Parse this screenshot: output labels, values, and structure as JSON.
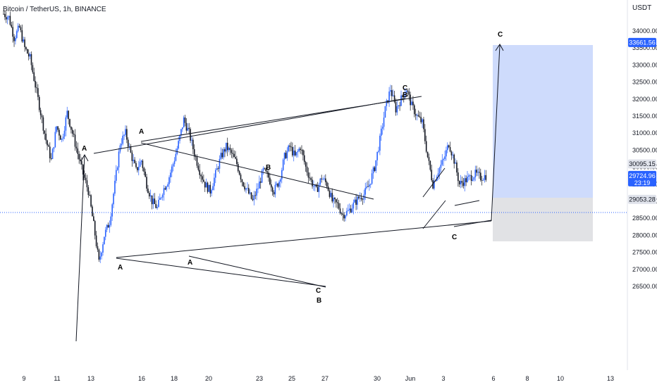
{
  "header": {
    "title": "Bitcoin / TetherUS, 1h, BINANCE"
  },
  "currency_label": "USDT",
  "chart_data": {
    "type": "candlestick",
    "symbol": "Bitcoin / TetherUS",
    "interval": "1h",
    "exchange": "BINANCE",
    "y_ticks": [
      34000,
      33500,
      33000,
      32500,
      32000,
      31500,
      31000,
      30500,
      30000,
      29500,
      29000,
      28500,
      28000,
      27500,
      27000,
      26500
    ],
    "ylim": [
      26200,
      34600
    ],
    "x_tick_labels": [
      "9",
      "11",
      "13",
      "16",
      "18",
      "20",
      "23",
      "25",
      "27",
      "30",
      "Jun",
      "3",
      "6",
      "8",
      "10",
      "13"
    ],
    "price_tags": [
      {
        "label": "33661.56",
        "value": 33661.56,
        "style": "blue"
      },
      {
        "label": "30095.15",
        "value": 30095.15,
        "style": "gray"
      },
      {
        "label": "29724.96",
        "sub": "23:19",
        "value": 29724.96,
        "style": "current"
      },
      {
        "label": "29053.28",
        "value": 29053.28,
        "style": "gray"
      }
    ],
    "current_price": 29724.96,
    "candle_countdown": "23:19",
    "price_path": [
      [
        0,
        34500
      ],
      [
        2,
        34400
      ],
      [
        4,
        33800
      ],
      [
        6,
        34100
      ],
      [
        8,
        33500
      ],
      [
        10,
        33200
      ],
      [
        12,
        32400
      ],
      [
        14,
        31600
      ],
      [
        16,
        30800
      ],
      [
        18,
        30200
      ],
      [
        20,
        31200
      ],
      [
        22,
        30800
      ],
      [
        24,
        31600
      ],
      [
        26,
        31000
      ],
      [
        28,
        30400
      ],
      [
        30,
        29800
      ],
      [
        32,
        29300
      ],
      [
        34,
        28300
      ],
      [
        36,
        27200
      ],
      [
        38,
        28000
      ],
      [
        40,
        28400
      ],
      [
        42,
        29500
      ],
      [
        44,
        30700
      ],
      [
        46,
        31000
      ],
      [
        48,
        30400
      ],
      [
        50,
        29900
      ],
      [
        52,
        30200
      ],
      [
        54,
        29500
      ],
      [
        56,
        29000
      ],
      [
        58,
        28800
      ],
      [
        60,
        29300
      ],
      [
        62,
        29600
      ],
      [
        64,
        30100
      ],
      [
        66,
        30700
      ],
      [
        68,
        31400
      ],
      [
        70,
        31000
      ],
      [
        72,
        30400
      ],
      [
        74,
        29900
      ],
      [
        76,
        29500
      ],
      [
        78,
        29300
      ],
      [
        80,
        29800
      ],
      [
        82,
        30300
      ],
      [
        84,
        30600
      ],
      [
        86,
        30400
      ],
      [
        88,
        30100
      ],
      [
        90,
        29600
      ],
      [
        92,
        29300
      ],
      [
        94,
        29000
      ],
      [
        96,
        29400
      ],
      [
        98,
        29900
      ],
      [
        100,
        29700
      ],
      [
        102,
        29300
      ],
      [
        104,
        29600
      ],
      [
        106,
        30300
      ],
      [
        108,
        30600
      ],
      [
        110,
        30300
      ],
      [
        112,
        30600
      ],
      [
        114,
        30000
      ],
      [
        116,
        29600
      ],
      [
        118,
        29300
      ],
      [
        120,
        29700
      ],
      [
        122,
        29500
      ],
      [
        124,
        29000
      ],
      [
        126,
        28900
      ],
      [
        128,
        28600
      ],
      [
        130,
        28700
      ],
      [
        132,
        28900
      ],
      [
        134,
        29100
      ],
      [
        136,
        29200
      ],
      [
        138,
        29500
      ],
      [
        140,
        30000
      ],
      [
        142,
        30800
      ],
      [
        144,
        31700
      ],
      [
        146,
        32300
      ],
      [
        148,
        31700
      ],
      [
        150,
        32000
      ],
      [
        152,
        32300
      ],
      [
        154,
        31800
      ],
      [
        156,
        31500
      ],
      [
        158,
        31300
      ],
      [
        160,
        30300
      ],
      [
        162,
        29500
      ],
      [
        164,
        29900
      ],
      [
        166,
        30200
      ],
      [
        168,
        30700
      ],
      [
        170,
        30200
      ],
      [
        172,
        29500
      ],
      [
        174,
        29600
      ],
      [
        176,
        29700
      ],
      [
        178,
        29800
      ],
      [
        180,
        29700
      ],
      [
        182,
        29750
      ]
    ],
    "wave_labels": [
      "A",
      "A",
      "A",
      "A",
      "B",
      "B",
      "C",
      "B",
      "C",
      "C"
    ],
    "target_zone": {
      "top": 33661.56,
      "entry": 30095.15,
      "bottom": 29053.28
    }
  }
}
